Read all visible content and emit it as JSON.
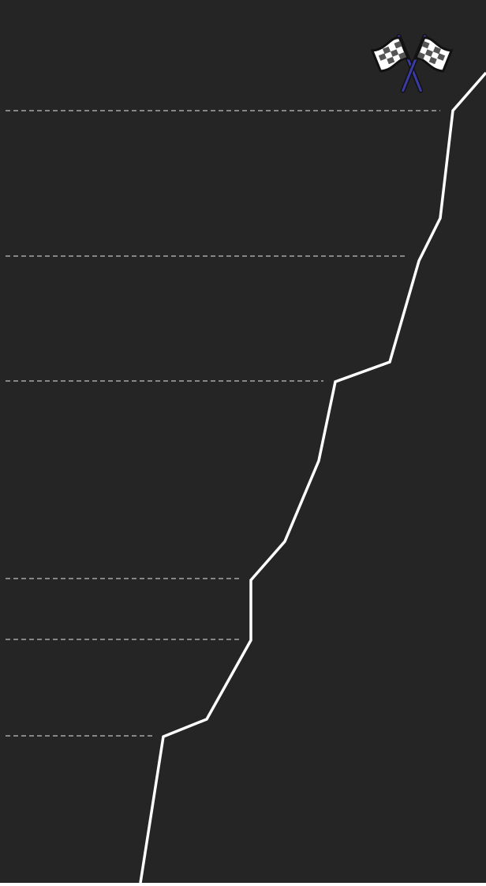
{
  "colors": {
    "background": "#252525",
    "route_line": "#ffffff",
    "guide_lines": "#e6e6e6",
    "flag_pole": "#3b3ba6",
    "flag_dark": "#555555",
    "flag_light": "#ffffff",
    "outline": "#111111"
  },
  "icons": {
    "finish": "checkered-flags-icon"
  },
  "diagram": {
    "type": "route-profile",
    "checkpoint_count": 6,
    "segment_count": 15
  }
}
